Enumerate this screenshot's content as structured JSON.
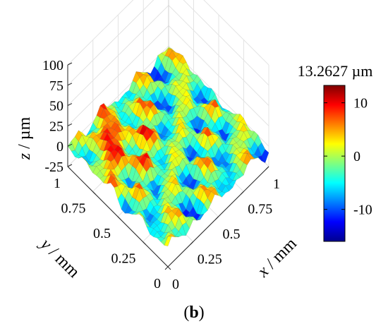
{
  "chart_data": {
    "type": "surface3d",
    "title": "",
    "caption": {
      "open": "(",
      "letter": "b",
      "close": ")"
    },
    "x_axis": {
      "var": "x",
      "unit": "/ mm",
      "ticks": [
        "0",
        "0.25",
        "0.5",
        "0.75",
        "1"
      ],
      "range": [
        0,
        1
      ]
    },
    "y_axis": {
      "var": "y",
      "unit": "/ mm",
      "ticks": [
        "0",
        "0.25",
        "0.5",
        "0.75",
        "1"
      ],
      "range": [
        0,
        1
      ]
    },
    "z_axis": {
      "var": "z",
      "unit": "/ µm",
      "ticks": [
        "-25",
        "0",
        "25",
        "50",
        "75",
        "100"
      ],
      "range": [
        -25,
        100
      ]
    },
    "colorbar": {
      "title": "13.2627 µm",
      "ticks": [
        "10",
        "0",
        "-10"
      ],
      "tick_values": [
        10,
        0,
        -10
      ],
      "range": [
        -16,
        13.2627
      ],
      "colormap": "jet"
    },
    "surface": {
      "description_free": true,
      "x_samples": 28,
      "y_samples": 28,
      "z_min": -16,
      "z_max": 13.2627,
      "grid": true
    }
  }
}
